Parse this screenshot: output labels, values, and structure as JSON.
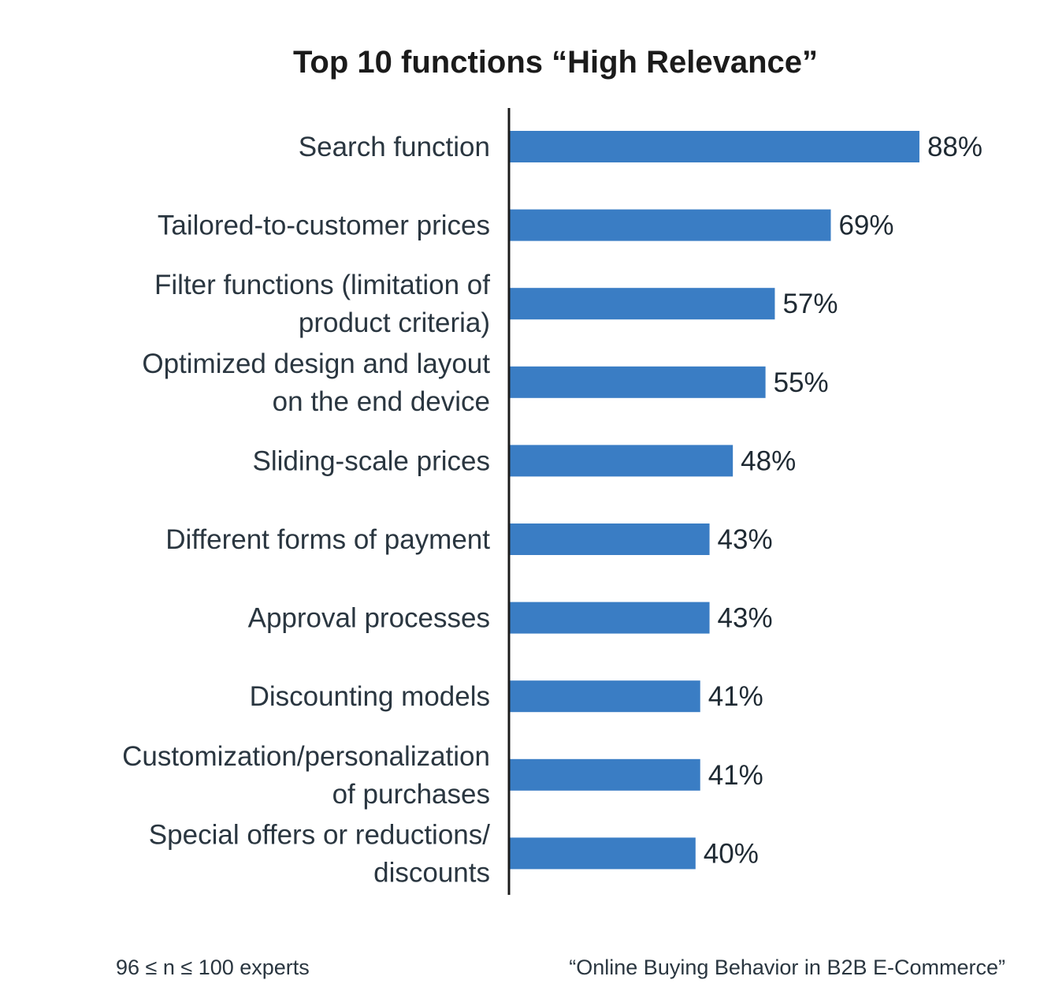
{
  "colors": {
    "bar": "#3a7dc4",
    "axis": "#1b1b1b",
    "text": "#2a3640"
  },
  "chart_data": {
    "type": "bar",
    "orientation": "horizontal",
    "title": "Top 10 functions “High Relevance”",
    "categories": [
      [
        "Search function"
      ],
      [
        "Tailored-to-customer prices"
      ],
      [
        "Filter functions (limitation of",
        "product criteria)"
      ],
      [
        "Optimized design and layout",
        "on the end device"
      ],
      [
        "Sliding-scale prices"
      ],
      [
        "Different forms of payment"
      ],
      [
        "Approval processes"
      ],
      [
        "Discounting models"
      ],
      [
        "Customization/personalization",
        "of purchases"
      ],
      [
        "Special offers or reductions/",
        "discounts"
      ]
    ],
    "values": [
      88,
      69,
      57,
      55,
      48,
      43,
      43,
      41,
      41,
      40
    ],
    "value_labels": [
      "88%",
      "69%",
      "57%",
      "55%",
      "48%",
      "43%",
      "43%",
      "41%",
      "41%",
      "40%"
    ],
    "xlim": [
      0,
      100
    ],
    "grid": false,
    "legend": "none"
  },
  "footer": {
    "sample_note": "96 ≤ n ≤ 100 experts",
    "source": "“Online Buying Behavior in B2B E-Commerce”"
  }
}
